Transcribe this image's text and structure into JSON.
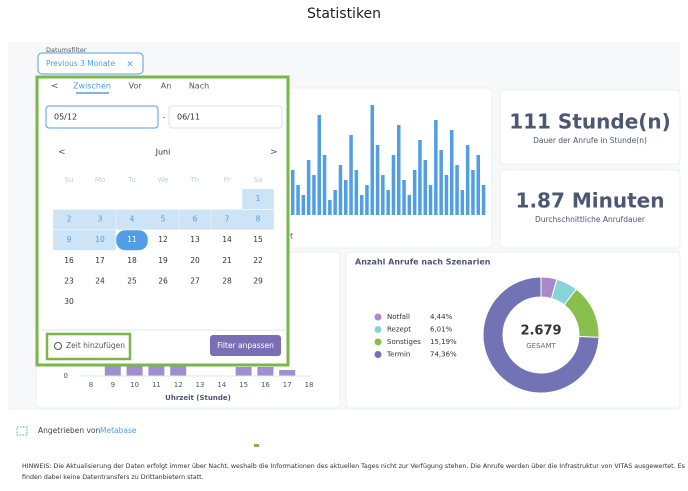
{
  "page_title": "Statistiken",
  "filter": {
    "label": "Datumsfilter",
    "value": "Previous 3 Monate",
    "close": "×"
  },
  "picker": {
    "back": "<",
    "tabs": [
      "Zwischen",
      "Vor",
      "An",
      "Nach"
    ],
    "active_tab": 0,
    "start": "05/12",
    "separator": "-",
    "end": "06/11",
    "prev": "<",
    "month": "Juni",
    "next": ">",
    "weekdays": [
      "Su",
      "Mo",
      "Tu",
      "We",
      "Th",
      "Fr",
      "Sa"
    ],
    "weeks": [
      [
        null,
        null,
        null,
        null,
        null,
        null,
        {
          "day": 1,
          "state": "range"
        }
      ],
      [
        {
          "day": 2,
          "state": "range"
        },
        {
          "day": 3,
          "state": "range"
        },
        {
          "day": 4,
          "state": "range"
        },
        {
          "day": 5,
          "state": "range"
        },
        {
          "day": 6,
          "state": "range"
        },
        {
          "day": 7,
          "state": "range"
        },
        {
          "day": 8,
          "state": "range"
        }
      ],
      [
        {
          "day": 9,
          "state": "range"
        },
        {
          "day": 10,
          "state": "range"
        },
        {
          "day": 11,
          "state": "selected"
        },
        {
          "day": 12,
          "state": "normal"
        },
        {
          "day": 13,
          "state": "normal"
        },
        {
          "day": 14,
          "state": "normal"
        },
        {
          "day": 15,
          "state": "normal"
        }
      ],
      [
        {
          "day": 16,
          "state": "normal"
        },
        {
          "day": 17,
          "state": "normal"
        },
        {
          "day": 18,
          "state": "normal"
        },
        {
          "day": 19,
          "state": "normal"
        },
        {
          "day": 20,
          "state": "normal"
        },
        {
          "day": 21,
          "state": "normal"
        },
        {
          "day": 22,
          "state": "normal"
        }
      ],
      [
        {
          "day": 23,
          "state": "normal"
        },
        {
          "day": 24,
          "state": "normal"
        },
        {
          "day": 25,
          "state": "normal"
        },
        {
          "day": 26,
          "state": "normal"
        },
        {
          "day": 27,
          "state": "normal"
        },
        {
          "day": 28,
          "state": "normal"
        },
        {
          "day": 29,
          "state": "normal"
        }
      ],
      [
        {
          "day": 30,
          "state": "normal"
        }
      ]
    ],
    "add_time": "Zeit hinzufügen",
    "apply": "Filter anpassen"
  },
  "top_chart": {
    "axis_fragment": "t",
    "color": "#509ee3",
    "values": [
      45,
      30,
      20,
      55,
      40,
      100,
      60,
      15,
      25,
      50,
      35,
      80,
      45,
      20,
      30,
      110,
      70,
      40,
      25,
      60,
      90,
      35,
      20,
      45,
      75,
      55,
      30,
      95,
      65,
      40,
      85,
      50,
      25,
      70,
      45,
      60,
      30
    ]
  },
  "kpis": [
    {
      "value": "111 Stunde(n)",
      "label": "Dauer der Anrufe in Stunde(n)"
    },
    {
      "value": "1.87 Minuten",
      "label": "Durchschnittliche Anrufdauer"
    }
  ],
  "hour_chart": {
    "x_label": "Uhrzeit (Stunde)",
    "yticks": [
      0
    ],
    "color": "#9f8fd0",
    "categories": [
      "8",
      "9",
      "10",
      "11",
      "12",
      "13",
      "14",
      "15",
      "16",
      "17",
      "18"
    ],
    "values": [
      0,
      4,
      4,
      4,
      4,
      0,
      0,
      3,
      3,
      2,
      0
    ]
  },
  "donut": {
    "title": "Anzahl Anrufe nach Szenarien",
    "categories": [
      "Notfall",
      "Rezept",
      "Sonstiges",
      "Termin"
    ],
    "values": [
      4.44,
      6.01,
      15.19,
      74.36
    ],
    "value_labels": [
      "4,44%",
      "6,01%",
      "15,19%",
      "74,36%"
    ],
    "colors": [
      "#a989c9",
      "#88d3d8",
      "#88bf4d",
      "#7173b5"
    ],
    "total": "2.679",
    "total_label": "GESAMT"
  },
  "footer": {
    "prefix": "Angetrieben von",
    "brand": "Metabase"
  },
  "note": [
    "HINWEIS: Die Aktualisierung der Daten erfolgt immer über Nacht, weshalb die Informationen des aktuellen Tages nicht zur Verfügung stehen. Die Anrufe werden über die Infrastruktur von VITAS ausgewertet. Es",
    "finden dabei keine Datentransfers zu Drittanbietern statt."
  ]
}
